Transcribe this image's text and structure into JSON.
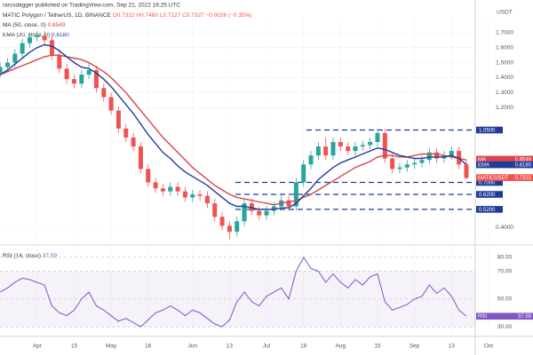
{
  "header": {
    "publisher": "rarcsdagger published on TradingView.com, Sep 21, 2022 16:25 UTC",
    "symbol": "MATIC Polygon / TetherUS, 1D, BINANCE",
    "ohlc": "O0.7312 H0.7460 L0.7127 C0.7327 −0.0026 (−0.35%)"
  },
  "chart_data": [
    {
      "type": "candlestick",
      "axis_unit": "USDT",
      "up_color": "#26a69a",
      "down_color": "#ef5350",
      "grid": true,
      "categories": [
        null,
        null,
        null,
        null,
        null,
        "Apr",
        null,
        null,
        null,
        null,
        "15",
        null,
        null,
        null,
        null,
        "May",
        null,
        null,
        null,
        null,
        "16",
        null,
        null,
        null,
        null,
        null,
        "Jun",
        null,
        null,
        null,
        null,
        "13",
        null,
        null,
        null,
        null,
        "Jul",
        null,
        null,
        null,
        null,
        "18",
        null,
        null,
        null,
        null,
        "Aug",
        null,
        null,
        null,
        null,
        "15",
        null,
        null,
        null,
        null,
        "Sep",
        null,
        null,
        null,
        null,
        "13",
        null,
        null,
        null,
        null,
        "Oct",
        null
      ],
      "open": [
        1.43,
        1.47,
        1.5,
        1.56,
        1.63,
        1.67,
        1.68,
        1.65,
        1.55,
        1.46,
        1.39,
        1.36,
        1.42,
        1.45,
        1.33,
        1.27,
        1.18,
        1.06,
        1.0,
        0.94,
        0.79,
        0.7,
        0.66,
        0.64,
        0.67,
        0.64,
        0.6,
        0.62,
        0.61,
        0.56,
        0.47,
        0.41,
        0.37,
        0.44,
        0.56,
        0.51,
        0.48,
        0.51,
        0.54,
        0.58,
        0.54,
        0.7,
        0.82,
        0.88,
        0.94,
        0.88,
        0.97,
        0.94,
        0.91,
        0.94,
        0.95,
        0.97,
        1.03,
        0.86,
        0.79,
        0.8,
        0.82,
        0.83,
        0.85,
        0.9,
        0.86,
        0.88,
        0.91,
        0.82,
        null,
        null,
        null,
        null
      ],
      "high": [
        1.5,
        1.53,
        1.59,
        1.66,
        1.7,
        1.71,
        1.71,
        1.68,
        1.58,
        1.49,
        1.42,
        1.45,
        1.5,
        1.48,
        1.36,
        1.3,
        1.21,
        1.09,
        1.03,
        0.97,
        0.82,
        0.73,
        0.69,
        0.7,
        0.7,
        0.67,
        0.65,
        0.65,
        0.64,
        0.59,
        0.5,
        0.44,
        0.47,
        0.59,
        0.59,
        0.54,
        0.54,
        0.57,
        0.61,
        0.61,
        0.73,
        0.85,
        0.91,
        0.97,
        1.0,
        1.0,
        1.0,
        0.97,
        0.97,
        0.98,
        1.0,
        1.06,
        1.06,
        0.89,
        0.83,
        0.85,
        0.86,
        0.88,
        0.93,
        0.93,
        0.91,
        0.94,
        0.94,
        0.85,
        null,
        null,
        null,
        null
      ],
      "low": [
        1.4,
        1.44,
        1.47,
        1.53,
        1.6,
        1.64,
        1.62,
        1.52,
        1.43,
        1.36,
        1.33,
        1.33,
        1.39,
        1.3,
        1.24,
        1.15,
        1.03,
        0.97,
        0.91,
        0.76,
        0.67,
        0.63,
        0.61,
        0.61,
        0.61,
        0.57,
        0.57,
        0.58,
        0.53,
        0.44,
        0.38,
        0.32,
        0.34,
        0.41,
        0.48,
        0.45,
        0.45,
        0.48,
        0.51,
        0.51,
        0.51,
        0.67,
        0.79,
        0.85,
        0.85,
        0.85,
        0.91,
        0.88,
        0.88,
        0.91,
        0.92,
        0.94,
        0.83,
        0.76,
        0.76,
        0.77,
        0.79,
        0.8,
        0.82,
        0.83,
        0.83,
        0.85,
        0.79,
        0.72,
        null,
        null,
        null,
        null
      ],
      "close": [
        1.47,
        1.5,
        1.56,
        1.63,
        1.67,
        1.68,
        1.65,
        1.55,
        1.46,
        1.39,
        1.36,
        1.42,
        1.45,
        1.33,
        1.27,
        1.18,
        1.06,
        1.0,
        0.94,
        0.79,
        0.7,
        0.66,
        0.64,
        0.67,
        0.64,
        0.6,
        0.62,
        0.61,
        0.56,
        0.47,
        0.41,
        0.37,
        0.44,
        0.56,
        0.51,
        0.48,
        0.51,
        0.54,
        0.58,
        0.54,
        0.7,
        0.82,
        0.88,
        0.94,
        0.88,
        0.97,
        0.94,
        0.91,
        0.94,
        0.95,
        0.97,
        1.03,
        0.86,
        0.79,
        0.8,
        0.82,
        0.83,
        0.85,
        0.9,
        0.86,
        0.88,
        0.91,
        0.82,
        0.73,
        null,
        null,
        null,
        null
      ],
      "series": [
        {
          "name": "MA (50, close, 0)",
          "badge": "MA",
          "color": "#d9434b",
          "last": {
            "value": 0.8549,
            "label": "0.8549"
          },
          "values": [
            1.42,
            1.44,
            1.46,
            1.48,
            1.5,
            1.52,
            1.54,
            1.55,
            1.55,
            1.54,
            1.53,
            1.52,
            1.5,
            1.47,
            1.44,
            1.4,
            1.35,
            1.3,
            1.24,
            1.18,
            1.12,
            1.06,
            1.0,
            0.95,
            0.9,
            0.85,
            0.8,
            0.76,
            0.72,
            0.68,
            0.65,
            0.62,
            0.6,
            0.59,
            0.58,
            0.57,
            0.56,
            0.55,
            0.56,
            0.57,
            0.58,
            0.6,
            0.62,
            0.65,
            0.68,
            0.71,
            0.74,
            0.77,
            0.8,
            0.82,
            0.84,
            0.87,
            0.88,
            0.88,
            0.87,
            0.87,
            0.88,
            0.89,
            0.89,
            0.89,
            0.88,
            0.87,
            0.86,
            0.85,
            null,
            null,
            null,
            null
          ]
        },
        {
          "name": "EMA (20, close, 0)",
          "badge": "EMA",
          "color": "#1f3b9c",
          "last": {
            "value": 0.818,
            "label": "0.8180"
          },
          "values": [
            1.42,
            1.45,
            1.49,
            1.53,
            1.57,
            1.6,
            1.62,
            1.61,
            1.58,
            1.54,
            1.5,
            1.47,
            1.46,
            1.43,
            1.39,
            1.34,
            1.28,
            1.22,
            1.16,
            1.09,
            1.02,
            0.96,
            0.9,
            0.86,
            0.81,
            0.77,
            0.74,
            0.71,
            0.68,
            0.64,
            0.6,
            0.56,
            0.54,
            0.54,
            0.53,
            0.52,
            0.52,
            0.52,
            0.53,
            0.53,
            0.56,
            0.61,
            0.66,
            0.72,
            0.76,
            0.8,
            0.83,
            0.85,
            0.87,
            0.89,
            0.91,
            0.93,
            0.92,
            0.9,
            0.88,
            0.87,
            0.86,
            0.86,
            0.87,
            0.87,
            0.87,
            0.88,
            0.86,
            0.82,
            null,
            null,
            null,
            null
          ]
        }
      ],
      "price_badge": {
        "name": "MATICUSDT",
        "value": 0.7322,
        "label": "0.7322"
      },
      "levels": [
        {
          "value": 1.05,
          "label": "1.0500"
        },
        {
          "value": 0.7,
          "label": "0.7000"
        },
        {
          "value": 0.62,
          "label": "0.6200"
        },
        {
          "value": 0.52,
          "label": "0.5200"
        }
      ],
      "ylim": [
        0.3,
        1.8
      ],
      "yticks": [
        {
          "value": 1.7,
          "label": "1.7000"
        },
        {
          "value": 1.6,
          "label": "1.6000"
        },
        {
          "value": 1.5,
          "label": "1.5000"
        },
        {
          "value": 1.4,
          "label": "1.4000"
        },
        {
          "value": 1.3,
          "label": "1.3000"
        },
        {
          "value": 1.2,
          "label": "1.2000"
        },
        {
          "value": 0.4,
          "label": "0.4000"
        }
      ]
    },
    {
      "type": "line",
      "grid": true,
      "series": [
        {
          "name": "RSI (14, close)",
          "badge": "RSI",
          "color": "#7e57c2",
          "last": {
            "value": 37.59,
            "label": "37.59"
          },
          "values": [
            55,
            58,
            62,
            65,
            64,
            62,
            60,
            45,
            40,
            38,
            42,
            50,
            55,
            45,
            42,
            38,
            34,
            36,
            33,
            30,
            35,
            40,
            42,
            45,
            42,
            38,
            42,
            40,
            36,
            32,
            30,
            35,
            48,
            55,
            48,
            45,
            52,
            55,
            58,
            50,
            70,
            80,
            72,
            70,
            62,
            68,
            62,
            58,
            64,
            60,
            66,
            68,
            48,
            42,
            44,
            46,
            50,
            52,
            60,
            54,
            58,
            52,
            42,
            37.59
          ]
        }
      ],
      "ylim": [
        25,
        87
      ],
      "yticks": [
        {
          "value": 80,
          "label": "80.00"
        },
        {
          "value": 70,
          "label": "70.00"
        },
        {
          "value": 50,
          "label": "50.00"
        },
        {
          "value": 30,
          "label": "30.00"
        }
      ]
    }
  ]
}
